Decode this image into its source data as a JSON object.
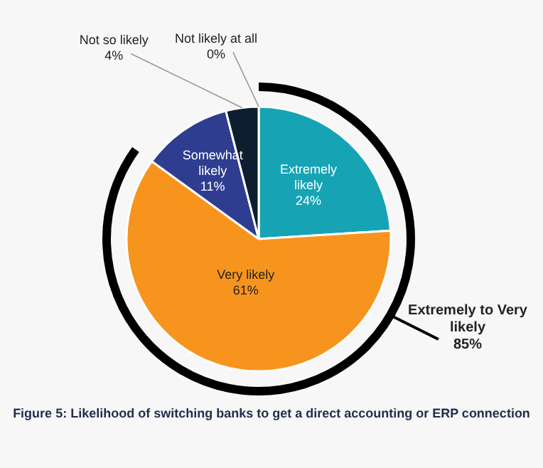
{
  "chart_data": {
    "type": "pie",
    "categories": [
      "Extremely likely",
      "Very likely",
      "Somewhat likely",
      "Not so likely",
      "Not likely at all"
    ],
    "values": [
      24,
      61,
      11,
      4,
      0
    ],
    "colors": [
      "#16a4b4",
      "#f7941d",
      "#2e3d8f",
      "#0c1e30",
      "#0c1e30"
    ],
    "value_labels": [
      "24%",
      "61%",
      "11%",
      "4%",
      "0%"
    ],
    "legend": false,
    "annotations": [
      "Extremely to Very likely\n85%",
      "Figure 5: Likelihood of switching banks to get a direct accounting or ERP connection"
    ]
  }
}
